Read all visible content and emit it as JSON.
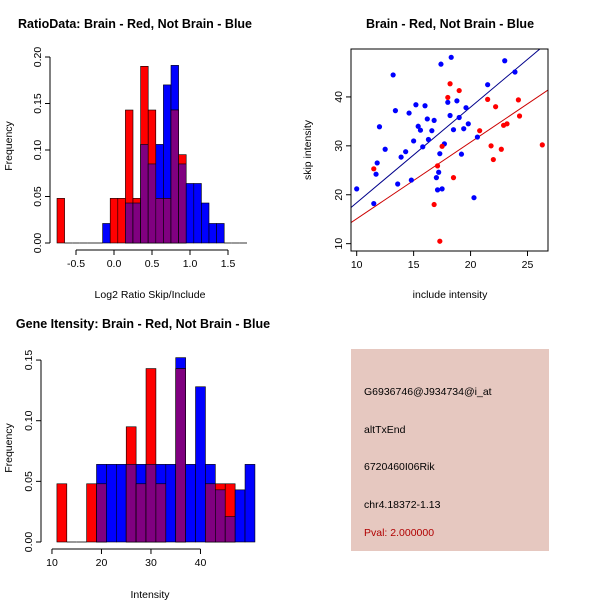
{
  "colors": {
    "red": "#ff0000",
    "blue": "#0000ff",
    "overlap": "#800080",
    "info_bg": "#e6c8c0",
    "pval_text": "#b00000",
    "line_blue": "#00008b",
    "line_red": "#cc0000"
  },
  "chart_data": [
    {
      "type": "bar",
      "title": "RatioData: Brain - Red, Not Brain - Blue",
      "xlabel": "Log2 Ratio Skip/Include",
      "ylabel": "Frequency",
      "xlim": [
        -0.75,
        1.75
      ],
      "ylim": [
        0,
        0.2
      ],
      "xticks": [
        "-0.5",
        "0.0",
        "0.5",
        "1.0",
        "1.5"
      ],
      "xtick_values": [
        -0.5,
        0,
        0.5,
        1.0,
        1.5
      ],
      "yticks": [
        "0.00",
        "0.05",
        "0.10",
        "0.15",
        "0.20"
      ],
      "ytick_values": [
        0,
        0.05,
        0.1,
        0.15,
        0.2
      ],
      "bin_start": -0.75,
      "bin_width": 0.1,
      "series": [
        {
          "name": "Brain",
          "color": "red",
          "values": [
            0.048,
            0,
            0,
            0,
            0,
            0,
            0,
            0.048,
            0.048,
            0.143,
            0.048,
            0.19,
            0.143,
            0.048,
            0.048,
            0.143,
            0.095,
            0,
            0,
            0,
            0,
            0,
            0,
            0,
            0
          ]
        },
        {
          "name": "Not Brain",
          "color": "blue",
          "values": [
            0,
            0,
            0,
            0,
            0,
            0,
            0.021,
            0,
            0,
            0.043,
            0.043,
            0.106,
            0.085,
            0.106,
            0.17,
            0.191,
            0.085,
            0.064,
            0.064,
            0.043,
            0.021,
            0.021,
            0,
            0,
            0
          ]
        }
      ]
    },
    {
      "type": "scatter",
      "title": "Brain - Red, Not Brain - Blue",
      "xlabel": "include intensity",
      "ylabel": "skip intensity",
      "xlim": [
        9.5,
        26.8
      ],
      "ylim": [
        8.5,
        49.8
      ],
      "xticks": [
        "10",
        "15",
        "20",
        "25"
      ],
      "xtick_values": [
        10,
        15,
        20,
        25
      ],
      "yticks": [
        "10",
        "20",
        "30",
        "40"
      ],
      "ytick_values": [
        10,
        20,
        30,
        40
      ],
      "regression_lines": [
        {
          "series": "Not Brain",
          "color": "line_blue",
          "x": [
            9.5,
            26.8
          ],
          "y": [
            17.4,
            51.2
          ]
        },
        {
          "series": "Brain",
          "color": "line_red",
          "x": [
            9.5,
            26.8
          ],
          "y": [
            14.3,
            41.4
          ]
        }
      ],
      "series": [
        {
          "name": "Not Brain",
          "color": "blue",
          "points": [
            [
              10,
              21.2
            ],
            [
              11.5,
              18.2
            ],
            [
              11.7,
              24.2
            ],
            [
              11.8,
              26.5
            ],
            [
              12,
              33.9
            ],
            [
              12.5,
              29.3
            ],
            [
              13.2,
              44.5
            ],
            [
              13.4,
              37.2
            ],
            [
              13.6,
              22.2
            ],
            [
              13.9,
              27.7
            ],
            [
              14.3,
              28.8
            ],
            [
              14.6,
              36.7
            ],
            [
              14.8,
              23
            ],
            [
              15,
              31
            ],
            [
              15.2,
              38.4
            ],
            [
              15.4,
              34
            ],
            [
              15.6,
              33.2
            ],
            [
              15.8,
              29.8
            ],
            [
              16,
              38.2
            ],
            [
              16.2,
              35.5
            ],
            [
              16.3,
              31.3
            ],
            [
              16.6,
              33.1
            ],
            [
              16.8,
              35.2
            ],
            [
              17,
              23.5
            ],
            [
              17.1,
              21
            ],
            [
              17.2,
              24.6
            ],
            [
              17.3,
              28.4
            ],
            [
              17.4,
              46.7
            ],
            [
              17.5,
              21.2
            ],
            [
              17.7,
              30.4
            ],
            [
              18,
              38.9
            ],
            [
              18.2,
              36.2
            ],
            [
              18.3,
              48.1
            ],
            [
              18.5,
              33.3
            ],
            [
              18.8,
              39.2
            ],
            [
              19,
              35.8
            ],
            [
              19.2,
              28.3
            ],
            [
              19.4,
              33.5
            ],
            [
              19.6,
              37.8
            ],
            [
              19.8,
              34.5
            ],
            [
              20.3,
              19.4
            ],
            [
              20.6,
              31.8
            ],
            [
              21.5,
              42.5
            ],
            [
              23,
              47.4
            ],
            [
              23.9,
              45.1
            ]
          ]
        },
        {
          "name": "Brain",
          "color": "red",
          "points": [
            [
              11.5,
              25.3
            ],
            [
              16.8,
              18
            ],
            [
              17.1,
              25.9
            ],
            [
              17.3,
              10.5
            ],
            [
              17.5,
              29.9
            ],
            [
              18,
              39.9
            ],
            [
              18.2,
              42.7
            ],
            [
              18.5,
              23.5
            ],
            [
              19,
              41.3
            ],
            [
              20.8,
              33.1
            ],
            [
              21.5,
              39.5
            ],
            [
              21.8,
              30
            ],
            [
              22,
              27.2
            ],
            [
              22.2,
              38
            ],
            [
              22.7,
              29.3
            ],
            [
              22.9,
              34.2
            ],
            [
              23.2,
              34.5
            ],
            [
              24.2,
              39.4
            ],
            [
              24.3,
              36.1
            ],
            [
              26.3,
              30.2
            ]
          ]
        }
      ]
    },
    {
      "type": "bar",
      "title": "Gene Itensity: Brain - Red, Not Brain - Blue",
      "xlabel": "Intensity",
      "ylabel": "Frequency",
      "xlim": [
        9.2,
        49.6
      ],
      "ylim": [
        0,
        0.155
      ],
      "xticks": [
        "10",
        "20",
        "30",
        "40"
      ],
      "xtick_values": [
        10,
        20,
        30,
        40
      ],
      "yticks": [
        "0.00",
        "0.05",
        "0.10",
        "0.15"
      ],
      "ytick_values": [
        0,
        0.05,
        0.1,
        0.15
      ],
      "bin_start": 11,
      "bin_width": 2,
      "series": [
        {
          "name": "Brain",
          "color": "red",
          "values": [
            0.048,
            0,
            0,
            0.048,
            0.048,
            0,
            0,
            0.095,
            0.048,
            0.143,
            0.048,
            0,
            0.143,
            0,
            0,
            0.048,
            0.048,
            0.048,
            0,
            0
          ]
        },
        {
          "name": "Not Brain",
          "color": "blue",
          "values": [
            0,
            0,
            0,
            0,
            0.064,
            0.064,
            0.064,
            0.064,
            0.064,
            0.064,
            0.064,
            0.064,
            0.152,
            0.064,
            0.128,
            0.064,
            0.043,
            0.021,
            0.043,
            0.064
          ]
        }
      ]
    }
  ],
  "info_panel": {
    "probe": "G6936746@J934734@i_at",
    "event": "altTxEnd",
    "gene": "6720460I06Rik",
    "location": "chr4.18372-1.13",
    "pval": "Pval: 2.000000"
  }
}
